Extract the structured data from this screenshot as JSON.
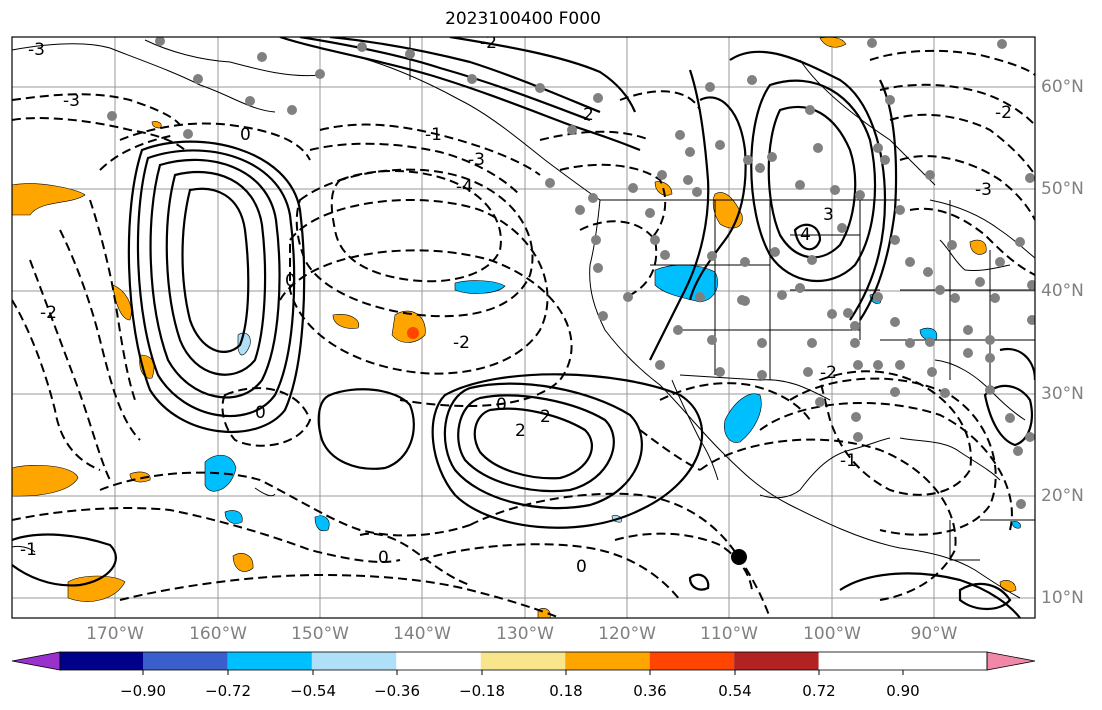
{
  "title": "2023100400 F000",
  "lat_labels": [
    "60°N",
    "50°N",
    "40°N",
    "30°N",
    "20°N",
    "10°N"
  ],
  "lon_labels": [
    "170°W",
    "160°W",
    "150°W",
    "140°W",
    "130°W",
    "120°W",
    "110°W",
    "100°W",
    "90°W"
  ],
  "contour_labels": [
    "-3",
    "-2",
    "-3",
    "0",
    "-1",
    "-3",
    "-4",
    "2",
    "4",
    "3",
    "0",
    "-2",
    "-2",
    "0",
    "2",
    "2",
    "0",
    "-1",
    "0",
    "0",
    "-2",
    "-1",
    "-3",
    "-2"
  ],
  "colorbar": {
    "tick_labels": [
      "−0.90",
      "−0.72",
      "−0.54",
      "−0.36",
      "−0.18",
      "0.18",
      "0.36",
      "0.54",
      "0.72",
      "0.90"
    ],
    "colors": [
      "#9932cc",
      "#00008b",
      "#3a5fcd",
      "#00bfff",
      "#b0e0f8",
      "#ffffff",
      "#f8e58c",
      "#ffa500",
      "#ff4500",
      "#b22222",
      "#f288a8"
    ]
  },
  "map_style": {
    "border_color": "#000000",
    "grid_color": "#808080",
    "positive_contour": "solid black",
    "negative_contour": "dashed black",
    "station_marker_color": "#808080",
    "highlight_marker_color": "#000000"
  }
}
